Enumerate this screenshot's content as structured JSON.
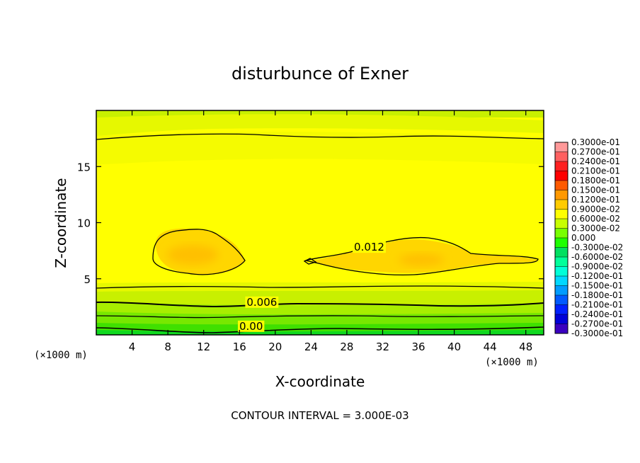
{
  "chart_data": {
    "type": "contour",
    "title": "disturbunce of Exner",
    "xlabel": "X-coordinate",
    "ylabel": "Z-coordinate",
    "x_unit": "(×1000 m)",
    "footer": "CONTOUR INTERVAL = 3.000E-03",
    "xlim": [
      0,
      50
    ],
    "ylim": [
      0,
      20
    ],
    "x_ticks": [
      4,
      8,
      12,
      16,
      20,
      24,
      28,
      32,
      36,
      40,
      44,
      48
    ],
    "y_ticks": [
      5,
      10,
      15
    ],
    "contour_interval": 0.003,
    "contour_labels": [
      {
        "text": "0.012",
        "x": 30.5,
        "y": 7.5
      },
      {
        "text": "0.006",
        "x": 18.5,
        "y": 2.6
      },
      {
        "text": "0.00",
        "x": 17.3,
        "y": 0.45
      }
    ],
    "colorbar": {
      "levels": [
        "0.3000e-01",
        "0.2700e-01",
        "0.2400e-01",
        "0.2100e-01",
        "0.1800e-01",
        "0.1500e-01",
        "0.1200e-01",
        "0.9000e-02",
        "0.6000e-02",
        "0.3000e-02",
        "0.000",
        "-0.3000e-02",
        "-0.6000e-02",
        "-0.9000e-02",
        "-0.1200e-01",
        "-0.1500e-01",
        "-0.1800e-01",
        "-0.2100e-01",
        "-0.2400e-01",
        "-0.2700e-01",
        "-0.3000e-01"
      ],
      "colors": [
        "#ff9999",
        "#ff6060",
        "#ff2020",
        "#ff0000",
        "#ff5a00",
        "#ff9900",
        "#ffcc00",
        "#ffff00",
        "#c8ff00",
        "#78ff00",
        "#1eff00",
        "#00e060",
        "#00ff9a",
        "#00ffd8",
        "#00d8ff",
        "#009cff",
        "#005aff",
        "#0020ff",
        "#0000d8",
        "#3a00c0",
        "#7000a0"
      ]
    },
    "field": {
      "background_level": 0.0105,
      "maxima": [
        {
          "x": 10.5,
          "z": 7.0,
          "value": 0.0138
        },
        {
          "x": 36.5,
          "z": 6.7,
          "value": 0.0135
        }
      ]
    }
  }
}
